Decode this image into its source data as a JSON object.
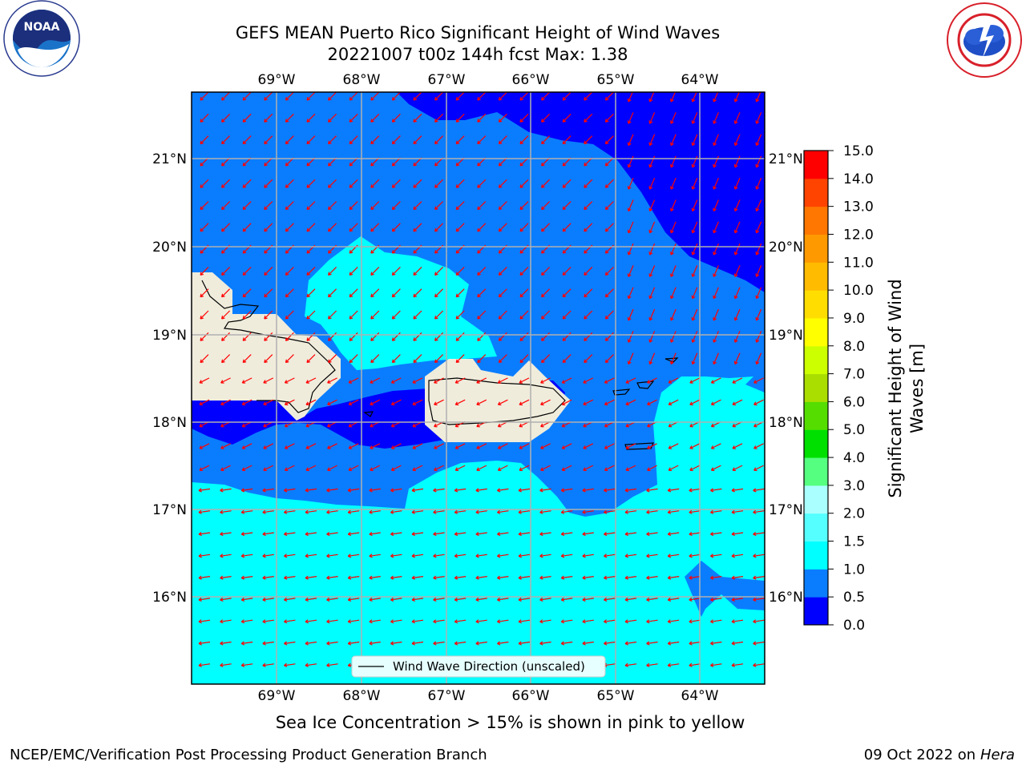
{
  "header": {
    "title_line1": "GEFS MEAN Puerto Rico Significant Height of Wind Waves",
    "title_line2": "20221007 t00z 144h fcst   Max: 1.38"
  },
  "logos": {
    "left": {
      "name": "noaa-logo-icon",
      "text": "NOAA"
    },
    "right": {
      "name": "national-weather-service-logo-icon"
    }
  },
  "map": {
    "lon_labels": [
      "69°W",
      "68°W",
      "67°W",
      "66°W",
      "65°W",
      "64°W"
    ],
    "lat_labels": [
      "21°N",
      "20°N",
      "19°N",
      "18°N",
      "17°N",
      "16°N"
    ],
    "legend_label": "Wind Wave Direction (unscaled)",
    "colors": {
      "band_0_05": "#0000ff",
      "band_05_1": "#0a7dff",
      "band_1_15": "#00ffff",
      "land": "#efecdc",
      "arrow": "#ff0000"
    }
  },
  "colorbar": {
    "label_line1": "Significant Height of Wind",
    "label_line2": "Waves [m]",
    "ticks": [
      "0.0",
      "0.5",
      "1.0",
      "1.5",
      "2.0",
      "3.0",
      "4.0",
      "5.0",
      "6.0",
      "7.0",
      "8.0",
      "9.0",
      "10.0",
      "11.0",
      "12.0",
      "13.0",
      "14.0",
      "15.0"
    ],
    "colors": [
      "#0000ff",
      "#0a7dff",
      "#00ffff",
      "#55ffff",
      "#aaffff",
      "#55ff7f",
      "#00e000",
      "#55dd00",
      "#aadd00",
      "#ccff00",
      "#ffff00",
      "#ffdd00",
      "#ffbb00",
      "#ff9900",
      "#ff7700",
      "#ff4400",
      "#ff0000"
    ]
  },
  "notes": {
    "sea_ice": "Sea Ice Concentration > 15% is shown in pink to yellow",
    "producer": "NCEP/EMC/Verification Post Processing Product Generation Branch",
    "date_prefix": "09 Oct 2022 on",
    "host": "Hera"
  }
}
